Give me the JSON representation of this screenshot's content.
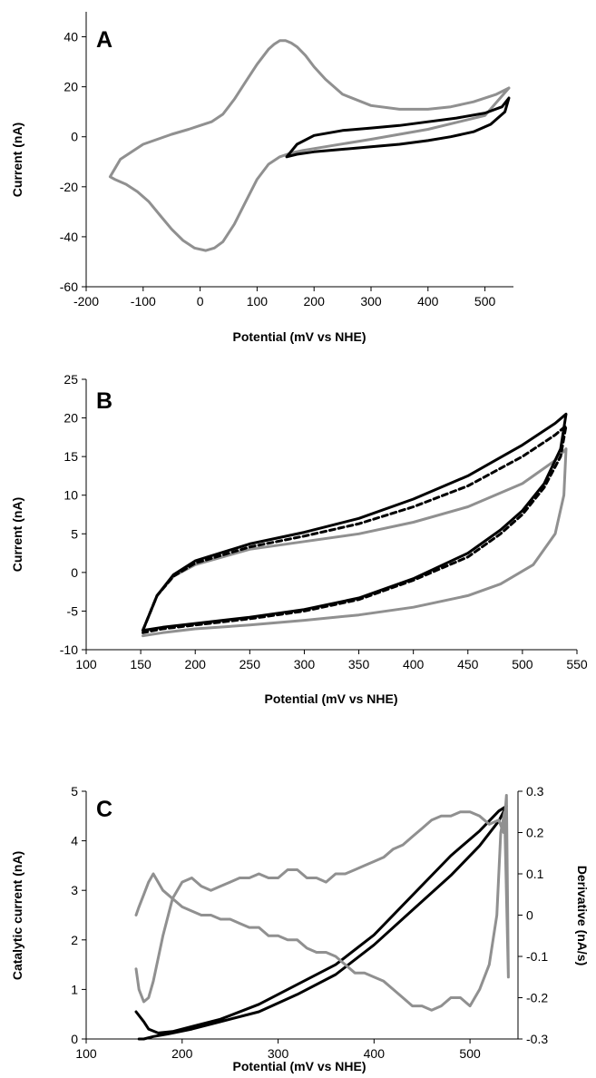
{
  "chart_data": [
    {
      "panel": "A",
      "type": "line",
      "xlabel": "Potential (mV vs NHE)",
      "ylabel": "Current (nA)",
      "xlim": [
        -200,
        550
      ],
      "ylim": [
        -60,
        50
      ],
      "xticks": [
        -200,
        -100,
        0,
        100,
        200,
        300,
        400,
        500
      ],
      "yticks": [
        -60,
        -40,
        -20,
        0,
        20,
        40
      ],
      "grid": false,
      "series": [
        {
          "color": "#909090",
          "dash": "",
          "x": [
            542,
            520,
            480,
            440,
            400,
            350,
            300,
            250,
            220,
            200,
            185,
            170,
            160,
            150,
            140,
            130,
            120,
            100,
            80,
            60,
            40,
            20,
            0,
            -20,
            -50,
            -100,
            -140,
            -158,
            -150,
            -130,
            -110,
            -90,
            -70,
            -50,
            -30,
            -10,
            10,
            25,
            40,
            60,
            80,
            100,
            120,
            140,
            160,
            180,
            220,
            300,
            400,
            500,
            542
          ],
          "y": [
            19.5,
            17,
            14,
            12,
            11,
            11,
            12.5,
            17,
            23,
            28,
            32.5,
            36,
            37.5,
            38.5,
            38.5,
            37,
            35,
            29,
            22,
            15,
            9,
            6,
            4.5,
            3,
            1,
            -3,
            -9,
            -16,
            -17,
            -19,
            -22,
            -26,
            -31.5,
            -37,
            -41.5,
            -44.5,
            -45.5,
            -44.5,
            -42,
            -35,
            -26,
            -17,
            -11,
            -8,
            -6.5,
            -5.5,
            -4,
            -1,
            3,
            8.5,
            19.5
          ]
        },
        {
          "color": "#000000",
          "dash": "",
          "x": [
            152,
            170,
            200,
            250,
            300,
            350,
            400,
            450,
            500,
            530,
            542,
            535,
            510,
            480,
            440,
            400,
            350,
            300,
            250,
            200,
            170,
            152
          ],
          "y": [
            -8,
            -3,
            0.5,
            2.5,
            3.5,
            4.5,
            6,
            7.5,
            9.5,
            12,
            15.5,
            10,
            5,
            2,
            0,
            -1.5,
            -3,
            -4,
            -5,
            -6,
            -7,
            -8
          ]
        }
      ]
    },
    {
      "panel": "B",
      "type": "line",
      "xlabel": "Potential (mV vs NHE)",
      "ylabel": "Current (nA)",
      "xlim": [
        100,
        550
      ],
      "ylim": [
        -10,
        25
      ],
      "xticks": [
        100,
        150,
        200,
        250,
        300,
        350,
        400,
        450,
        500,
        550
      ],
      "yticks": [
        -10,
        -5,
        0,
        5,
        10,
        15,
        20,
        25
      ],
      "grid": false,
      "series": [
        {
          "color": "#909090",
          "dash": "",
          "x": [
            152,
            165,
            180,
            200,
            250,
            300,
            350,
            400,
            450,
            500,
            530,
            540,
            538,
            530,
            510,
            480,
            450,
            400,
            350,
            300,
            250,
            200,
            170,
            152
          ],
          "y": [
            -7.5,
            -3,
            -0.5,
            1,
            3,
            4,
            5,
            6.5,
            8.5,
            11.5,
            14.5,
            16,
            10,
            5,
            1,
            -1.5,
            -3,
            -4.5,
            -5.5,
            -6.2,
            -6.8,
            -7.3,
            -7.8,
            -8.2
          ]
        },
        {
          "color": "#000000",
          "dash": "6,4",
          "x": [
            152,
            165,
            180,
            200,
            250,
            300,
            350,
            400,
            450,
            500,
            530,
            540,
            535,
            520,
            500,
            480,
            450,
            400,
            350,
            300,
            250,
            200,
            170,
            152
          ],
          "y": [
            -7.5,
            -3,
            -0.5,
            1.2,
            3.3,
            4.7,
            6.3,
            8.5,
            11.2,
            15,
            17.8,
            19,
            15,
            11,
            7.5,
            5,
            2,
            -1,
            -3.5,
            -5,
            -6,
            -6.8,
            -7.3,
            -7.8
          ]
        },
        {
          "color": "#000000",
          "dash": "",
          "x": [
            152,
            165,
            180,
            200,
            250,
            300,
            350,
            400,
            450,
            500,
            530,
            540,
            535,
            520,
            500,
            480,
            450,
            400,
            350,
            300,
            250,
            200,
            170,
            152
          ],
          "y": [
            -7.5,
            -3,
            -0.3,
            1.5,
            3.7,
            5.2,
            7,
            9.5,
            12.5,
            16.5,
            19.3,
            20.5,
            16,
            11.5,
            8,
            5.5,
            2.5,
            -0.8,
            -3.3,
            -4.8,
            -5.8,
            -6.6,
            -7.1,
            -7.5
          ]
        }
      ]
    },
    {
      "panel": "C",
      "type": "line",
      "xlabel": "Potential (mV vs NHE)",
      "ylabel": "Catalytic current (nA)",
      "ylabel_right": "Derivative (nA/s)",
      "xlim": [
        100,
        550
      ],
      "ylim": [
        0,
        5
      ],
      "ylim_right": [
        -0.3,
        0.3
      ],
      "xticks": [
        100,
        200,
        300,
        400,
        500
      ],
      "yticks": [
        0,
        1,
        2,
        3,
        4,
        5
      ],
      "yticks_right": [
        -0.3,
        -0.2,
        -0.1,
        0,
        0.1,
        0.2,
        0.3
      ],
      "grid": false,
      "series": [
        {
          "color": "#000000",
          "dash": "",
          "axis": "left",
          "x": [
            152,
            160,
            165,
            175,
            190,
            210,
            240,
            280,
            320,
            360,
            400,
            440,
            480,
            510,
            530,
            538,
            530,
            510,
            480,
            440,
            400,
            360,
            320,
            280,
            240,
            210,
            185,
            170,
            160,
            155
          ],
          "y": [
            0.55,
            0.35,
            0.2,
            0.12,
            0.15,
            0.25,
            0.4,
            0.7,
            1.1,
            1.5,
            2.1,
            2.9,
            3.7,
            4.2,
            4.6,
            4.7,
            4.4,
            3.9,
            3.3,
            2.6,
            1.9,
            1.3,
            0.9,
            0.55,
            0.35,
            0.2,
            0.1,
            0.05,
            0,
            0
          ]
        },
        {
          "color": "#909090",
          "dash": "",
          "axis": "right",
          "x": [
            152,
            155,
            160,
            165,
            170,
            180,
            190,
            200,
            210,
            220,
            230,
            240,
            250,
            260,
            270,
            280,
            290,
            300,
            310,
            320,
            330,
            340,
            350,
            360,
            370,
            380,
            390,
            400,
            410,
            420,
            430,
            440,
            450,
            460,
            470,
            480,
            490,
            500,
            510,
            520,
            530,
            535,
            538,
            540,
            536,
            532,
            528,
            520,
            510,
            500,
            490,
            480,
            470,
            460,
            450,
            440,
            430,
            420,
            410,
            400,
            390,
            380,
            370,
            360,
            350,
            340,
            330,
            320,
            310,
            300,
            290,
            280,
            270,
            260,
            250,
            240,
            230,
            220,
            210,
            200,
            190,
            180,
            170,
            165,
            160,
            155,
            152
          ],
          "y": [
            -0.13,
            -0.18,
            -0.21,
            -0.2,
            -0.16,
            -0.05,
            0.04,
            0.08,
            0.09,
            0.07,
            0.06,
            0.07,
            0.08,
            0.09,
            0.09,
            0.1,
            0.09,
            0.09,
            0.11,
            0.11,
            0.09,
            0.09,
            0.08,
            0.1,
            0.1,
            0.11,
            0.12,
            0.13,
            0.14,
            0.16,
            0.17,
            0.19,
            0.21,
            0.23,
            0.24,
            0.24,
            0.25,
            0.25,
            0.24,
            0.22,
            0.23,
            0.2,
            0.29,
            -0.15,
            0.25,
            0.2,
            0.0,
            -0.12,
            -0.18,
            -0.22,
            -0.2,
            -0.2,
            -0.22,
            -0.23,
            -0.22,
            -0.22,
            -0.2,
            -0.18,
            -0.16,
            -0.15,
            -0.14,
            -0.14,
            -0.12,
            -0.1,
            -0.09,
            -0.09,
            -0.08,
            -0.06,
            -0.06,
            -0.05,
            -0.05,
            -0.03,
            -0.03,
            -0.02,
            -0.01,
            -0.01,
            0.0,
            0.0,
            0.01,
            0.02,
            0.04,
            0.06,
            0.1,
            0.08,
            0.05,
            0.02,
            0.0
          ]
        }
      ]
    }
  ]
}
